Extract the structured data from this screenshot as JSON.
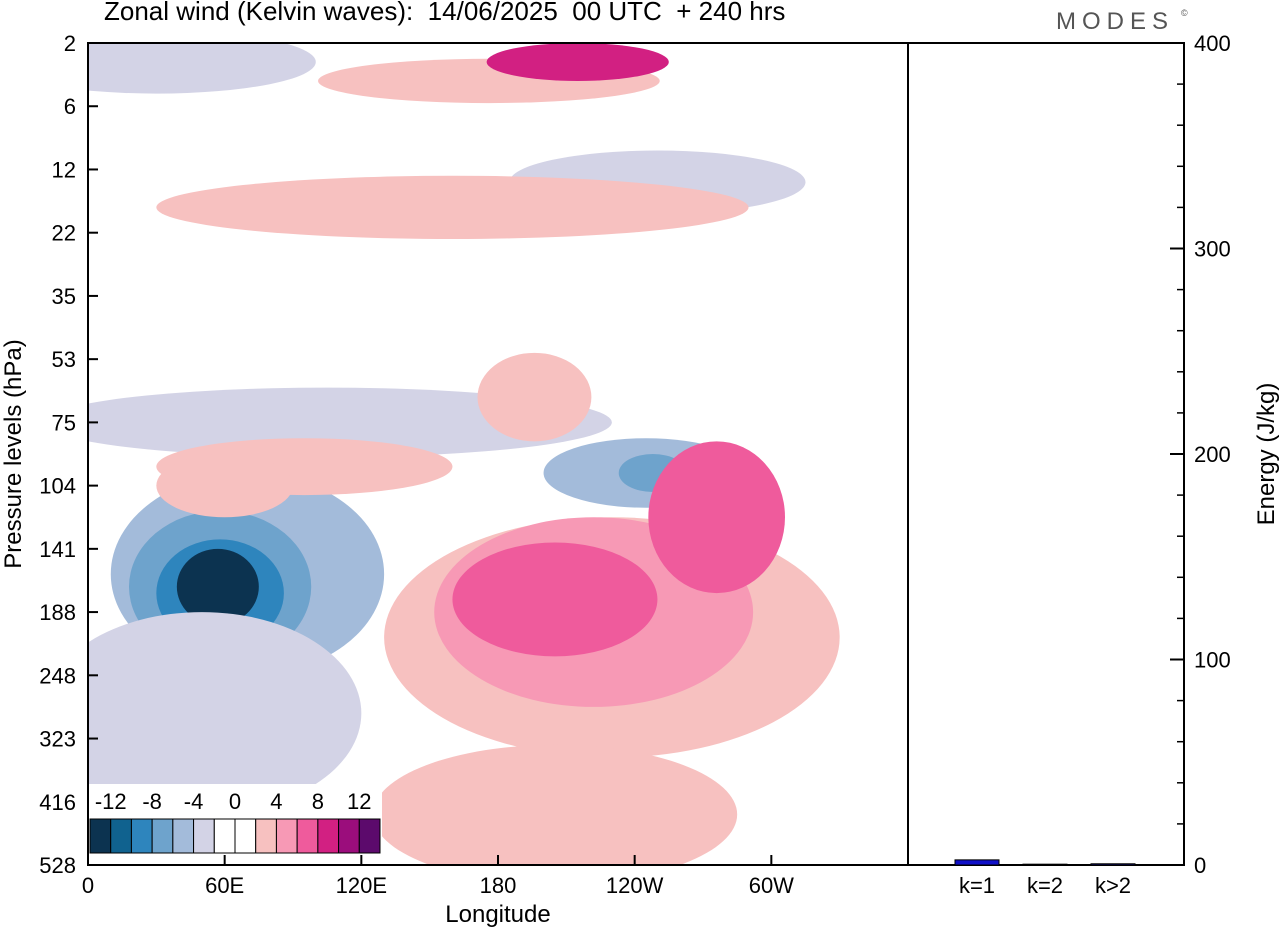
{
  "chart_data": [
    {
      "type": "heatmap",
      "title": "Zonal wind (Kelvin waves):  14/06/2025  00 UTC  + 240 hrs",
      "xlabel": "Longitude",
      "ylabel": "Pressure levels (hPa)",
      "x_ticks": [
        "0",
        "60E",
        "120E",
        "180",
        "120W",
        "60W"
      ],
      "y_ticks": [
        "2",
        "6",
        "12",
        "22",
        "35",
        "53",
        "75",
        "104",
        "141",
        "188",
        "248",
        "323",
        "416",
        "528"
      ],
      "colorbar": {
        "levels": [
          "-12",
          "-8",
          "-4",
          "0",
          "4",
          "8",
          "12"
        ],
        "colors": [
          "#0c3350",
          "#10628f",
          "#2e85bd",
          "#6ea3cc",
          "#a3bbda",
          "#d3d3e6",
          "#ffffff",
          "#ffffff",
          "#f7c1c0",
          "#f799b5",
          "#ef5b9c",
          "#d22082",
          "#9b0d7c",
          "#5c0a6c"
        ]
      },
      "blobs": [
        {
          "lon": 70,
          "p_index": 8.4,
          "rx": 60,
          "ry": 1.6,
          "value": -6
        },
        {
          "lon": 58,
          "p_index": 8.6,
          "rx": 40,
          "ry": 1.2,
          "value": -8
        },
        {
          "lon": 58,
          "p_index": 8.7,
          "rx": 28,
          "ry": 0.85,
          "value": -10
        },
        {
          "lon": 57,
          "p_index": 8.6,
          "rx": 18,
          "ry": 0.6,
          "value": -13
        },
        {
          "lon": 50,
          "p_index": 10.6,
          "rx": 70,
          "ry": 1.6,
          "value": -3
        },
        {
          "lon": 105,
          "p_index": 6.0,
          "rx": 125,
          "ry": 0.55,
          "value": -3
        },
        {
          "lon": 150,
          "p_index": 4.2,
          "rx": 140,
          "ry": 0.45,
          "value": -2
        },
        {
          "lon": 245,
          "p_index": 6.8,
          "rx": 45,
          "ry": 0.55,
          "value": -5
        },
        {
          "lon": 248,
          "p_index": 6.8,
          "rx": 15,
          "ry": 0.3,
          "value": -8
        },
        {
          "lon": 250,
          "p_index": 2.2,
          "rx": 65,
          "ry": 0.5,
          "value": -3
        },
        {
          "lon": 30,
          "p_index": 0.3,
          "rx": 70,
          "ry": 0.5,
          "value": -4
        },
        {
          "lon": 176,
          "p_index": 0.6,
          "rx": 75,
          "ry": 0.35,
          "value": 3
        },
        {
          "lon": 215,
          "p_index": 0.3,
          "rx": 40,
          "ry": 0.3,
          "value": 9
        },
        {
          "lon": 160,
          "p_index": 2.6,
          "rx": 130,
          "ry": 0.5,
          "value": 2
        },
        {
          "lon": 230,
          "p_index": 9.4,
          "rx": 100,
          "ry": 1.9,
          "value": 3
        },
        {
          "lon": 222,
          "p_index": 9.0,
          "rx": 70,
          "ry": 1.5,
          "value": 5
        },
        {
          "lon": 205,
          "p_index": 8.8,
          "rx": 45,
          "ry": 0.9,
          "value": 7
        },
        {
          "lon": 276,
          "p_index": 7.5,
          "rx": 30,
          "ry": 1.2,
          "value": 7
        },
        {
          "lon": 196,
          "p_index": 5.6,
          "rx": 25,
          "ry": 0.7,
          "value": 3
        },
        {
          "lon": 95,
          "p_index": 6.7,
          "rx": 65,
          "ry": 0.45,
          "value": 3
        },
        {
          "lon": 60,
          "p_index": 7.0,
          "rx": 30,
          "ry": 0.5,
          "value": 3
        },
        {
          "lon": 205,
          "p_index": 12.2,
          "rx": 80,
          "ry": 1.1,
          "value": 3
        }
      ]
    },
    {
      "type": "bar",
      "categories": [
        "k=1",
        "k=2",
        "k>2"
      ],
      "values": [
        2.5,
        0.4,
        0.6
      ],
      "ylabel": "Energy (J/kg)",
      "ylim": [
        0,
        400
      ],
      "y_ticks": [
        "0",
        "100",
        "200",
        "300",
        "400"
      ],
      "bar_color": "#1010c8"
    }
  ],
  "brand": "MODES",
  "brand_mark": "©"
}
